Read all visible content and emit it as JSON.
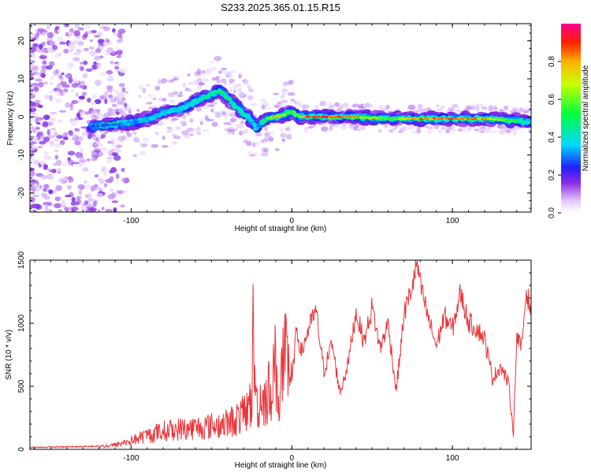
{
  "title": "S233.2025.365.01.15.R15",
  "colors": {
    "background": "#ffffff",
    "axis": "#000000",
    "snr_line": "#e8353a"
  },
  "chart_data": [
    {
      "type": "heatmap",
      "name": "spectrogram",
      "xlabel": "Height of straight line (km)",
      "ylabel": "Frequency (Hz)",
      "xlim": [
        -163,
        149
      ],
      "ylim": [
        -25,
        24.5
      ],
      "xticks": [
        -100,
        0,
        100
      ],
      "xtick_labels": [
        "-100",
        "0",
        "100"
      ],
      "yticks": [
        -20,
        -10,
        0,
        10,
        20
      ],
      "ytick_labels": [
        "-20",
        "-10",
        "0",
        "10",
        "20"
      ],
      "colorbar": {
        "label": "Normalized spectral amplitude",
        "range": [
          0,
          1
        ],
        "ticks": [
          0.0,
          0.2,
          0.4,
          0.6,
          0.8
        ],
        "tick_labels": [
          "0.0",
          "0.2",
          "0.4",
          "0.6",
          "0.8"
        ],
        "colormap": "rainbow"
      },
      "ridge": {
        "heights": [
          -125,
          -110,
          -100,
          -90,
          -80,
          -70,
          -60,
          -50,
          -45,
          -40,
          -35,
          -30,
          -25,
          -22,
          -20,
          -15,
          -10,
          -5,
          0,
          5,
          10,
          20,
          40,
          60,
          80,
          100,
          120,
          140,
          149
        ],
        "frequencies": [
          -2.5,
          -2,
          -1.5,
          -0.5,
          1,
          2,
          4,
          6,
          7,
          5,
          3,
          1,
          -1,
          -3,
          -2,
          -0.5,
          0,
          0.5,
          1.5,
          0,
          0,
          0,
          0,
          -0.5,
          -0.5,
          -0.5,
          -0.5,
          -1,
          -1.5
        ],
        "amplitudes": [
          0.28,
          0.3,
          0.32,
          0.34,
          0.36,
          0.38,
          0.4,
          0.45,
          0.48,
          0.46,
          0.42,
          0.4,
          0.36,
          0.32,
          0.3,
          0.62,
          0.82,
          0.7,
          0.5,
          0.66,
          0.9,
          0.92,
          0.82,
          0.55,
          0.85,
          0.9,
          0.8,
          0.5,
          0.36
        ]
      }
    },
    {
      "type": "line",
      "name": "snr",
      "xlabel": "Height of straight line (km)",
      "ylabel": "SNR (10 * v/v)",
      "xlim": [
        -163,
        149
      ],
      "ylim": [
        0,
        1500
      ],
      "xticks": [
        -100,
        0,
        100
      ],
      "xtick_labels": [
        "-100",
        "0",
        "100"
      ],
      "yticks": [
        0,
        500,
        1000,
        1500
      ],
      "ytick_labels": [
        "0",
        "500",
        "1000",
        "1500"
      ],
      "series": [
        {
          "name": "SNR",
          "x": [
            -163,
            -140,
            -120,
            -110,
            -100,
            -90,
            -80,
            -70,
            -60,
            -50,
            -40,
            -30,
            -25,
            -24,
            -22,
            -20,
            -15,
            -10,
            -8,
            -5,
            -2,
            0,
            3,
            6,
            10,
            15,
            20,
            25,
            30,
            35,
            40,
            45,
            50,
            55,
            60,
            65,
            70,
            75,
            78,
            80,
            85,
            90,
            95,
            100,
            105,
            110,
            115,
            120,
            125,
            130,
            135,
            138,
            140,
            143,
            146,
            149
          ],
          "y": [
            15,
            20,
            25,
            40,
            80,
            130,
            170,
            190,
            200,
            220,
            240,
            320,
            450,
            1050,
            400,
            460,
            500,
            780,
            440,
            880,
            700,
            520,
            960,
            760,
            940,
            1100,
            620,
            840,
            450,
            680,
            1090,
            850,
            1130,
            800,
            1000,
            460,
            1080,
            1290,
            1480,
            1300,
            1040,
            820,
            1060,
            950,
            1240,
            1010,
            960,
            880,
            560,
            660,
            520,
            130,
            900,
            800,
            1260,
            1100
          ]
        }
      ]
    }
  ]
}
